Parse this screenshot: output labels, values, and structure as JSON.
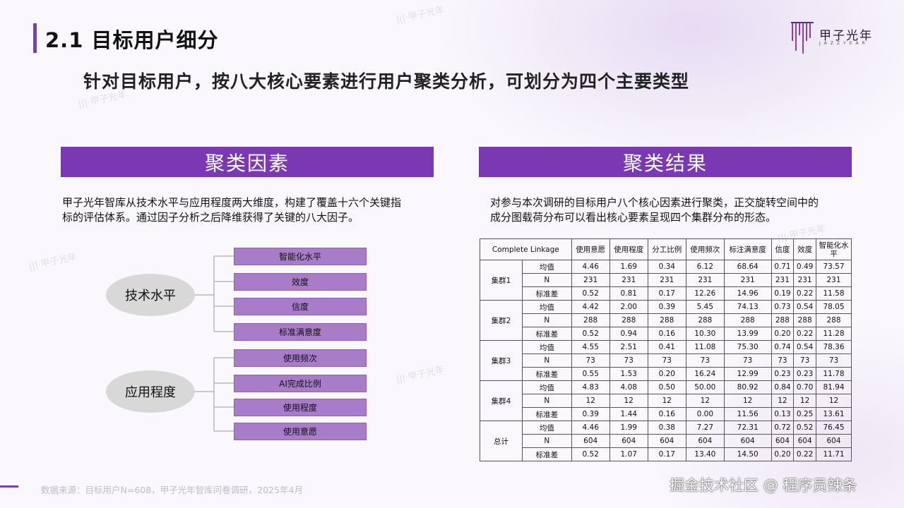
{
  "header": {
    "title": "2.1 目标用户细分",
    "subtitle": "针对目标用户，按八大核心要素进行用户聚类分析，可划分为四个主要类型",
    "logo_text": "甲子光年",
    "logo_sub": "JAZZYEAR",
    "brand_color": "#7a38b3"
  },
  "left": {
    "header": "聚类因素",
    "desc_line1": "甲子光年智库从技术水平与应用程度两大维度，构建了覆盖十六个关键指",
    "desc_line2": "标的评估体系。通过因子分析之后降维获得了关键的八大因子。",
    "groups": [
      {
        "label": "技术水平",
        "items": [
          "智能化水平",
          "效度",
          "信度",
          "标准满意度"
        ]
      },
      {
        "label": "应用程度",
        "items": [
          "使用频次",
          "AI完成比例",
          "使用程度",
          "使用意愿"
        ]
      }
    ]
  },
  "right": {
    "header": "聚类结果",
    "desc_line1": "对参与本次调研的目标用户八个核心因素进行聚类，正交旋转空间中的",
    "desc_line2": "成分图载荷分布可以看出核心要素呈现四个集群分布的形态。",
    "table": {
      "corner": "Complete Linkage",
      "columns": [
        "使用意愿",
        "使用程度",
        "分工比例",
        "使用频次",
        "标注满意度",
        "信度",
        "效度",
        "智能化水平"
      ],
      "groups": [
        {
          "name": "集群1",
          "rows": [
            {
              "stat": "均值",
              "values": [
                "4.46",
                "1.69",
                "0.34",
                "6.12",
                "68.64",
                "0.71",
                "0.49",
                "73.57"
              ]
            },
            {
              "stat": "N",
              "values": [
                "231",
                "231",
                "231",
                "231",
                "231",
                "231",
                "231",
                "231"
              ]
            },
            {
              "stat": "标准差",
              "values": [
                "0.52",
                "0.81",
                "0.17",
                "12.26",
                "14.96",
                "0.19",
                "0.22",
                "11.58"
              ]
            }
          ]
        },
        {
          "name": "集群2",
          "rows": [
            {
              "stat": "均值",
              "values": [
                "4.42",
                "2.00",
                "0.39",
                "5.45",
                "74.13",
                "0.73",
                "0.54",
                "78.05"
              ]
            },
            {
              "stat": "N",
              "values": [
                "288",
                "288",
                "288",
                "288",
                "288",
                "288",
                "288",
                "288"
              ]
            },
            {
              "stat": "标准差",
              "values": [
                "0.52",
                "0.94",
                "0.16",
                "10.30",
                "13.99",
                "0.20",
                "0.22",
                "11.28"
              ]
            }
          ]
        },
        {
          "name": "集群3",
          "rows": [
            {
              "stat": "均值",
              "values": [
                "4.55",
                "2.51",
                "0.41",
                "11.08",
                "75.30",
                "0.74",
                "0.54",
                "78.36"
              ]
            },
            {
              "stat": "N",
              "values": [
                "73",
                "73",
                "73",
                "73",
                "73",
                "73",
                "73",
                "73"
              ]
            },
            {
              "stat": "标准差",
              "values": [
                "0.55",
                "1.53",
                "0.20",
                "16.24",
                "12.99",
                "0.23",
                "0.23",
                "11.78"
              ]
            }
          ]
        },
        {
          "name": "集群4",
          "rows": [
            {
              "stat": "均值",
              "values": [
                "4.83",
                "4.08",
                "0.50",
                "50.00",
                "80.92",
                "0.84",
                "0.70",
                "81.94"
              ]
            },
            {
              "stat": "N",
              "values": [
                "12",
                "12",
                "12",
                "12",
                "12",
                "12",
                "12",
                "12"
              ]
            },
            {
              "stat": "标准差",
              "values": [
                "0.39",
                "1.44",
                "0.16",
                "0.00",
                "11.56",
                "0.13",
                "0.25",
                "13.61"
              ]
            }
          ]
        },
        {
          "name": "总计",
          "rows": [
            {
              "stat": "均值",
              "values": [
                "4.46",
                "1.99",
                "0.38",
                "7.27",
                "72.31",
                "0.72",
                "0.52",
                "76.45"
              ]
            },
            {
              "stat": "N",
              "values": [
                "604",
                "604",
                "604",
                "604",
                "604",
                "604",
                "604",
                "604"
              ]
            },
            {
              "stat": "标准差",
              "values": [
                "0.52",
                "1.07",
                "0.17",
                "13.40",
                "14.50",
                "0.20",
                "0.22",
                "11.71"
              ]
            }
          ]
        }
      ]
    }
  },
  "footer": {
    "source": "数据来源：目标用户N=608，甲子光年智库问卷调研，2025年4月",
    "watermark": "掘金技术社区 @ 程序员辣条"
  }
}
